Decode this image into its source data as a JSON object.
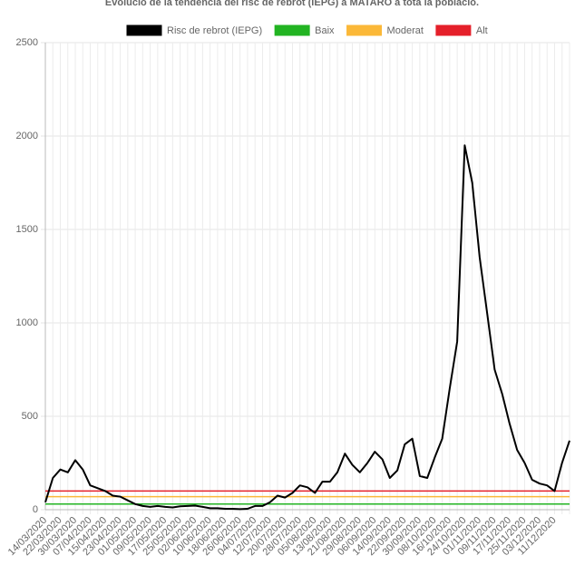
{
  "chart_data": {
    "type": "line",
    "title": "Evolució de la tendència del risc de rebrot (IEPG) a MATARÓ a tota la població.",
    "categories": [
      "14/03/2020",
      null,
      "22/03/2020",
      null,
      "30/03/2020",
      null,
      "07/04/2020",
      null,
      "15/04/2020",
      null,
      "23/04/2020",
      null,
      "01/05/2020",
      null,
      "09/05/2020",
      null,
      "17/05/2020",
      null,
      "25/05/2020",
      null,
      "02/06/2020",
      null,
      "10/06/2020",
      null,
      "18/06/2020",
      null,
      "26/06/2020",
      null,
      "04/07/2020",
      null,
      "12/07/2020",
      null,
      "20/07/2020",
      null,
      "28/07/2020",
      null,
      "05/08/2020",
      null,
      "13/08/2020",
      null,
      "21/08/2020",
      null,
      "29/08/2020",
      null,
      "06/09/2020",
      null,
      "14/09/2020",
      null,
      "22/09/2020",
      null,
      "30/09/2020",
      null,
      "08/10/2020",
      null,
      "16/10/2020",
      null,
      "24/10/2020",
      null,
      "01/11/2020",
      null,
      "09/11/2020",
      null,
      "17/11/2020",
      null,
      "25/11/2020",
      null,
      "03/12/2020",
      null,
      "11/12/2020",
      null,
      null
    ],
    "series": [
      {
        "name": "Risc de rebrot (IEPG)",
        "color": "#000000",
        "values": [
          40,
          170,
          215,
          200,
          265,
          215,
          130,
          115,
          100,
          75,
          70,
          50,
          30,
          20,
          15,
          20,
          15,
          12,
          18,
          20,
          22,
          15,
          8,
          8,
          5,
          5,
          3,
          5,
          20,
          20,
          40,
          75,
          65,
          90,
          130,
          120,
          90,
          150,
          150,
          200,
          300,
          240,
          200,
          250,
          310,
          270,
          170,
          210,
          350,
          380,
          180,
          170,
          280,
          380,
          650,
          900,
          1950,
          1750,
          1350,
          1050,
          750,
          620,
          460,
          320,
          250,
          160,
          140,
          130,
          100,
          250,
          370
        ]
      },
      {
        "name": "Baix",
        "color": "#22b422",
        "values": [
          30,
          30,
          30,
          30,
          30,
          30,
          30,
          30,
          30,
          30,
          30,
          30,
          30,
          30,
          30,
          30,
          30,
          30,
          30,
          30,
          30,
          30,
          30,
          30,
          30,
          30,
          30,
          30,
          30,
          30,
          30,
          30,
          30,
          30,
          30,
          30,
          30,
          30,
          30,
          30,
          30,
          30,
          30,
          30,
          30,
          30,
          30,
          30,
          30,
          30,
          30,
          30,
          30,
          30,
          30,
          30,
          30,
          30,
          30,
          30,
          30,
          30,
          30,
          30,
          30,
          30,
          30,
          30,
          30,
          30,
          30
        ]
      },
      {
        "name": "Moderat",
        "color": "#fbb838",
        "values": [
          70,
          70,
          70,
          70,
          70,
          70,
          70,
          70,
          70,
          70,
          70,
          70,
          70,
          70,
          70,
          70,
          70,
          70,
          70,
          70,
          70,
          70,
          70,
          70,
          70,
          70,
          70,
          70,
          70,
          70,
          70,
          70,
          70,
          70,
          70,
          70,
          70,
          70,
          70,
          70,
          70,
          70,
          70,
          70,
          70,
          70,
          70,
          70,
          70,
          70,
          70,
          70,
          70,
          70,
          70,
          70,
          70,
          70,
          70,
          70,
          70,
          70,
          70,
          70,
          70,
          70,
          70,
          70,
          70,
          70,
          70
        ]
      },
      {
        "name": "Alt",
        "color": "#e5202a",
        "values": [
          100,
          100,
          100,
          100,
          100,
          100,
          100,
          100,
          100,
          100,
          100,
          100,
          100,
          100,
          100,
          100,
          100,
          100,
          100,
          100,
          100,
          100,
          100,
          100,
          100,
          100,
          100,
          100,
          100,
          100,
          100,
          100,
          100,
          100,
          100,
          100,
          100,
          100,
          100,
          100,
          100,
          100,
          100,
          100,
          100,
          100,
          100,
          100,
          100,
          100,
          100,
          100,
          100,
          100,
          100,
          100,
          100,
          100,
          100,
          100,
          100,
          100,
          100,
          100,
          100,
          100,
          100,
          100,
          100,
          100,
          100
        ]
      }
    ],
    "ylim": [
      0,
      2500
    ],
    "yticks": [
      0,
      500,
      1000,
      1500,
      2000,
      2500
    ],
    "grid": true
  }
}
